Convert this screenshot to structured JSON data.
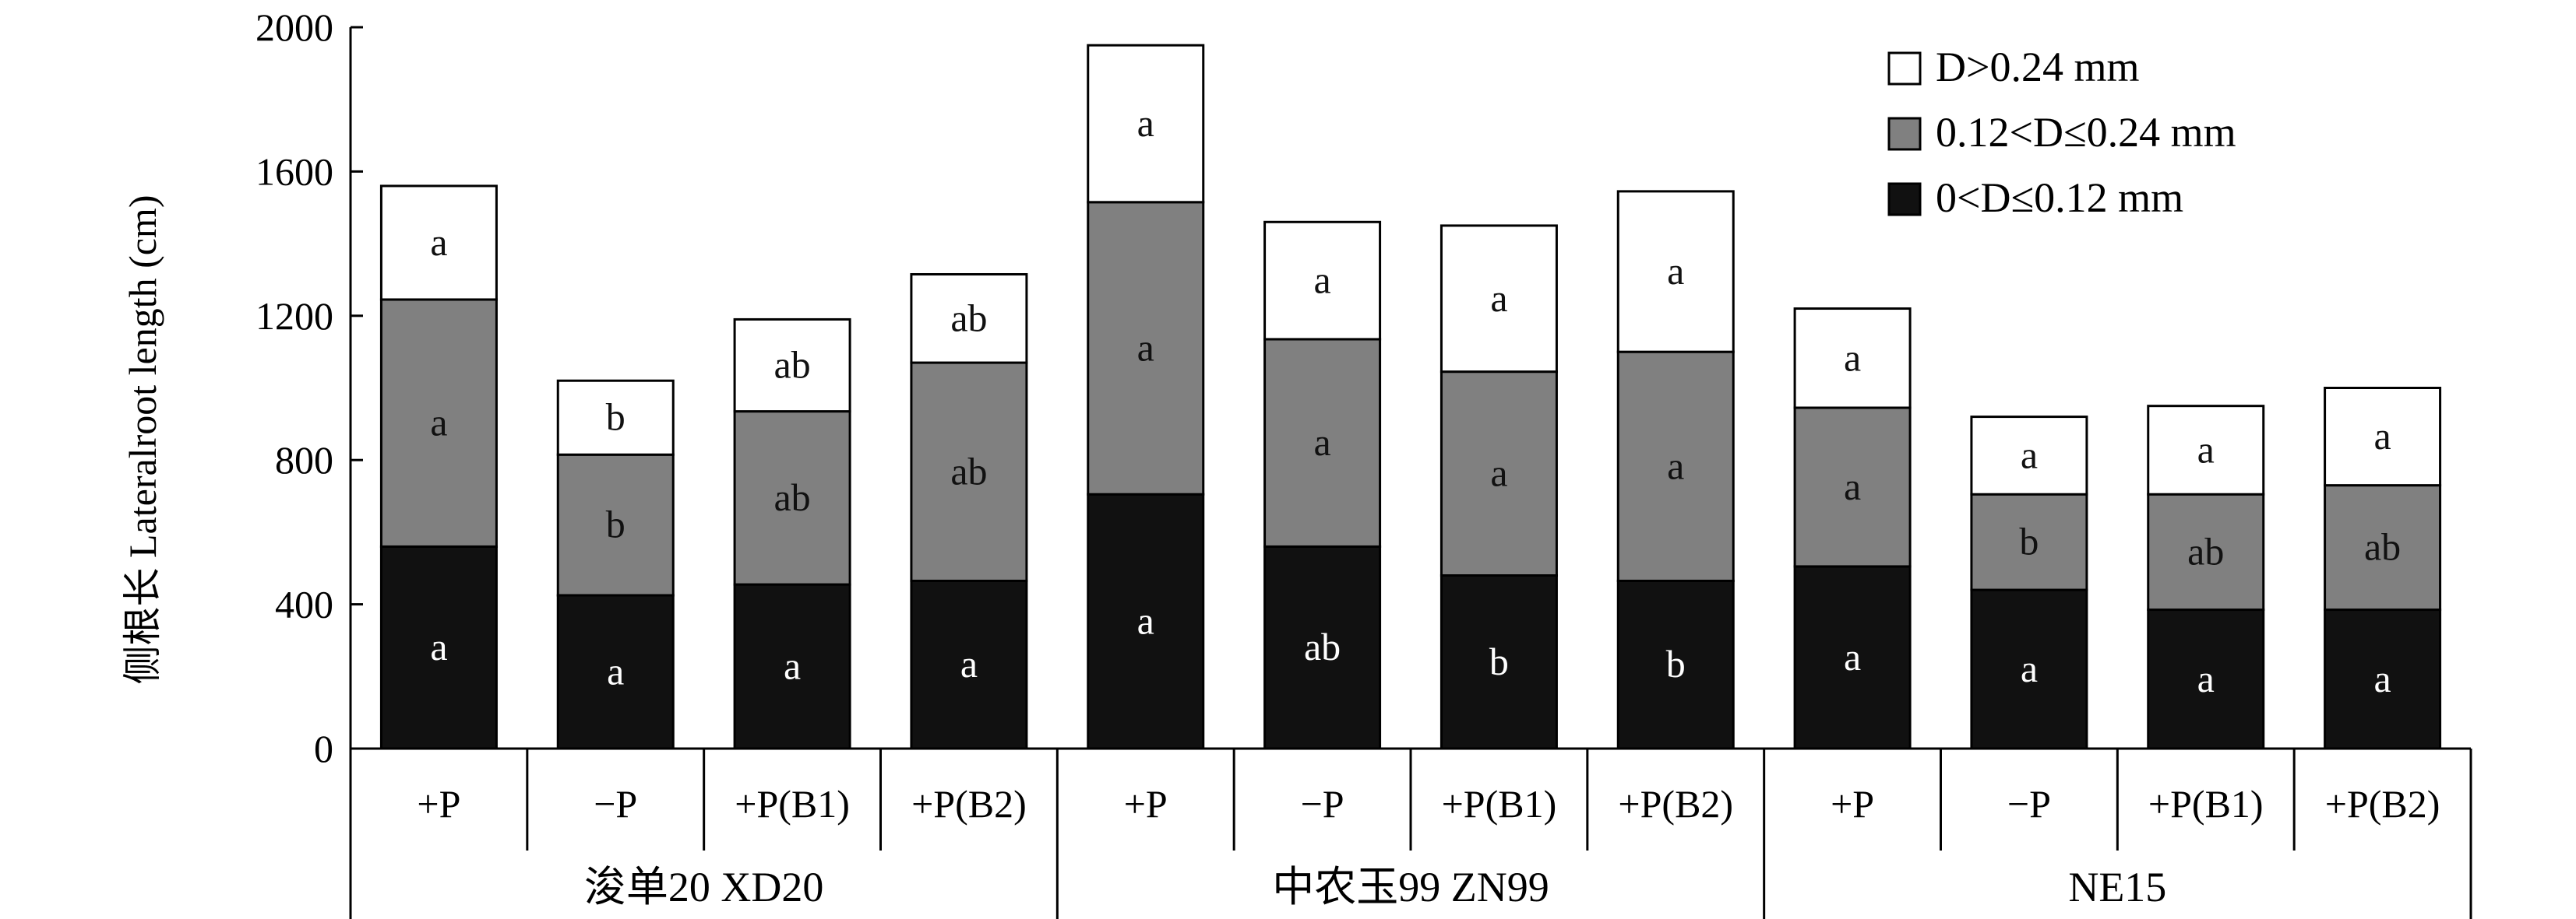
{
  "chart_data": {
    "type": "bar",
    "stacked": true,
    "ylabel": "侧根长  Lateralroot length (cm)",
    "ylim": [
      0,
      2000
    ],
    "yticks": [
      0,
      400,
      800,
      1200,
      1600,
      2000
    ],
    "groups": [
      {
        "name": "浚单20 XD20",
        "categories": [
          "+P",
          "−P",
          "+P(B1)",
          "+P(B2)"
        ]
      },
      {
        "name": "中农玉99 ZN99",
        "categories": [
          "+P",
          "−P",
          "+P(B1)",
          "+P(B2)"
        ]
      },
      {
        "name": "NE15",
        "categories": [
          "+P",
          "−P",
          "+P(B1)",
          "+P(B2)"
        ]
      }
    ],
    "series": [
      {
        "name": "0<D≤0.12 mm",
        "color": "#111111",
        "label_color": "#ffffff",
        "values": [
          560,
          425,
          455,
          465,
          705,
          560,
          480,
          465,
          505,
          440,
          385,
          385
        ],
        "labels": [
          "a",
          "a",
          "a",
          "a",
          "a",
          "ab",
          "b",
          "b",
          "a",
          "a",
          "a",
          "a"
        ]
      },
      {
        "name": "0.12<D≤0.24 mm",
        "color": "#808080",
        "label_color": "#111111",
        "values": [
          685,
          390,
          480,
          605,
          810,
          575,
          565,
          635,
          440,
          265,
          320,
          345
        ],
        "labels": [
          "a",
          "b",
          "ab",
          "ab",
          "a",
          "a",
          "a",
          "a",
          "a",
          "b",
          "ab",
          "ab"
        ]
      },
      {
        "name": "D>0.24 mm",
        "color": "#ffffff",
        "label_color": "#111111",
        "values": [
          315,
          205,
          255,
          245,
          435,
          325,
          405,
          445,
          275,
          215,
          245,
          270
        ],
        "labels": [
          "a",
          "b",
          "ab",
          "ab",
          "a",
          "a",
          "a",
          "a",
          "a",
          "a",
          "a",
          "a"
        ]
      }
    ],
    "legend": {
      "position": "top-right",
      "order": [
        "D>0.24 mm",
        "0.12<D≤0.24 mm",
        "0<D≤0.12 mm"
      ]
    }
  }
}
